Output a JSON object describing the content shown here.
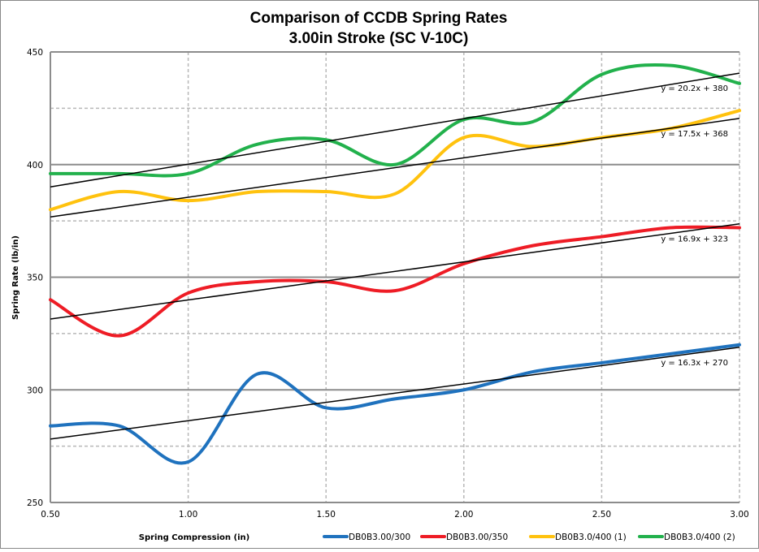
{
  "chart_data": {
    "type": "line",
    "title": "Comparison of CCDB Spring  Rates",
    "subtitle": "3.00in Stroke (SC V-10C)",
    "xlabel": "Spring Compression (in)",
    "ylabel": "Spring Rate (lb/in)",
    "xlim": [
      0.5,
      3.0
    ],
    "ylim": [
      250,
      450
    ],
    "x_ticks": [
      "0.50",
      "1.00",
      "1.50",
      "2.00",
      "2.50",
      "3.00"
    ],
    "y_ticks": [
      "250",
      "300",
      "350",
      "400",
      "450"
    ],
    "grid": true,
    "legend_position": "bottom-right",
    "x": [
      0.5,
      0.75,
      1.0,
      1.25,
      1.5,
      1.75,
      2.0,
      2.25,
      2.5,
      2.75,
      3.0
    ],
    "series": [
      {
        "name": "DB0B3.00/300",
        "color": "#1f72be",
        "values": [
          284,
          284,
          268,
          307,
          292,
          296,
          300,
          308,
          312,
          316,
          320
        ],
        "trendline": {
          "slope": 16.3,
          "intercept": 270,
          "label": "y = 16.3x + 270"
        }
      },
      {
        "name": "DB0B3.00/350",
        "color": "#ee1c25",
        "values": [
          340,
          324,
          343,
          348,
          348,
          344,
          356,
          364,
          368,
          372,
          372
        ],
        "trendline": {
          "slope": 16.9,
          "intercept": 323,
          "label": "y = 16.9x + 323"
        }
      },
      {
        "name": "DB0B3.0/400 (1)",
        "color": "#ffc20e",
        "values": [
          380,
          388,
          384,
          388,
          388,
          387,
          412,
          408,
          412,
          416,
          424
        ],
        "trendline": {
          "slope": 17.5,
          "intercept": 368,
          "label": "y = 17.5x + 368"
        }
      },
      {
        "name": "DB0B3.0/400 (2)",
        "color": "#22b14c",
        "values": [
          396,
          396,
          396,
          409,
          411,
          400,
          420,
          419,
          440,
          444,
          436
        ],
        "trendline": {
          "slope": 20.2,
          "intercept": 380,
          "label": "y = 20.2x + 380"
        }
      }
    ]
  }
}
